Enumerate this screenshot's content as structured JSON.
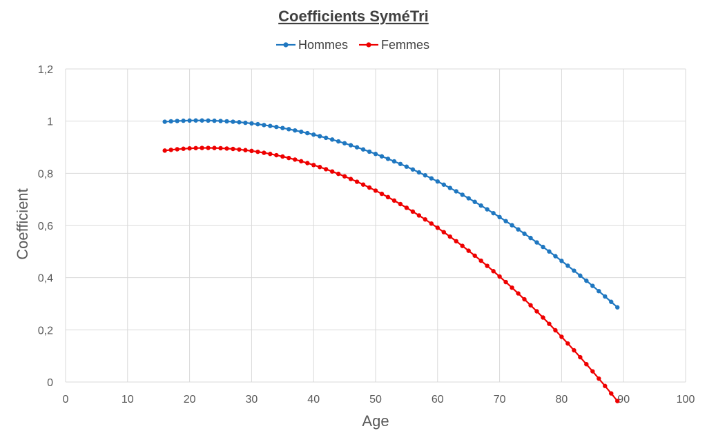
{
  "chart_data": {
    "type": "line",
    "title": "Coefficients SyméTri",
    "xlabel": "Age",
    "ylabel": "Coefficient",
    "xlim": [
      0,
      100
    ],
    "ylim": [
      0,
      1.2
    ],
    "x_ticks": [
      "0",
      "10",
      "20",
      "30",
      "40",
      "50",
      "60",
      "70",
      "80",
      "90",
      "100"
    ],
    "y_ticks": [
      "0",
      "0,2",
      "0,4",
      "0,6",
      "0,8",
      "1",
      "1,2"
    ],
    "grid": true,
    "legend_position": "top",
    "x": [
      16,
      17,
      18,
      19,
      20,
      21,
      22,
      23,
      24,
      25,
      26,
      27,
      28,
      29,
      30,
      31,
      32,
      33,
      34,
      35,
      36,
      37,
      38,
      39,
      40,
      41,
      42,
      43,
      44,
      45,
      46,
      47,
      48,
      49,
      50,
      51,
      52,
      53,
      54,
      55,
      56,
      57,
      58,
      59,
      60,
      61,
      62,
      63,
      64,
      65,
      66,
      67,
      68,
      69,
      70,
      71,
      72,
      73,
      74,
      75,
      76,
      77,
      78,
      79,
      80,
      81,
      82,
      83,
      84,
      85,
      86,
      87,
      88,
      89
    ],
    "series": [
      {
        "name": "Hommes",
        "color": "#1f77c0",
        "values": [
          0.9977,
          0.9993,
          1.0006,
          1.0015,
          1.0022,
          1.0025,
          1.0025,
          1.0022,
          1.0015,
          1.0006,
          0.9993,
          0.9977,
          0.9958,
          0.9936,
          0.9911,
          0.9882,
          0.985,
          0.9815,
          0.9777,
          0.9736,
          0.9692,
          0.9644,
          0.9594,
          0.954,
          0.9483,
          0.9423,
          0.936,
          0.9294,
          0.9224,
          0.9152,
          0.9076,
          0.8997,
          0.8915,
          0.883,
          0.8742,
          0.865,
          0.8556,
          0.8458,
          0.8358,
          0.8254,
          0.8147,
          0.8036,
          0.7923,
          0.7807,
          0.7687,
          0.7565,
          0.7439,
          0.731,
          0.7178,
          0.7043,
          0.6905,
          0.6764,
          0.6619,
          0.6472,
          0.6321,
          0.6167,
          0.601,
          0.585,
          0.5687,
          0.5521,
          0.5351,
          0.5178,
          0.5003,
          0.4824,
          0.4642,
          0.4457,
          0.4268,
          0.4077,
          0.3882,
          0.3685,
          0.3484,
          0.328,
          0.3073,
          0.2862
        ]
      },
      {
        "name": "Femmes",
        "color": "#ee0000",
        "values": [
          0.8871,
          0.8899,
          0.8922,
          0.8941,
          0.8956,
          0.8966,
          0.8972,
          0.8973,
          0.897,
          0.8962,
          0.895,
          0.8934,
          0.8913,
          0.8888,
          0.8858,
          0.8824,
          0.8786,
          0.8743,
          0.8695,
          0.8644,
          0.8587,
          0.8527,
          0.8462,
          0.8392,
          0.8318,
          0.824,
          0.8157,
          0.807,
          0.7979,
          0.7883,
          0.7782,
          0.7677,
          0.7568,
          0.7454,
          0.7336,
          0.7214,
          0.7087,
          0.6955,
          0.6819,
          0.6679,
          0.6534,
          0.6385,
          0.6231,
          0.6073,
          0.5911,
          0.5744,
          0.5573,
          0.5397,
          0.5217,
          0.5032,
          0.4843,
          0.465,
          0.4452,
          0.4249,
          0.4043,
          0.3831,
          0.3616,
          0.3396,
          0.3171,
          0.2942,
          0.2709,
          0.2471,
          0.2229,
          0.1982,
          0.1731,
          0.1476,
          0.1216,
          0.0951,
          0.0682,
          0.0409,
          0.0131,
          -0.0151,
          -0.0438,
          -0.0729
        ]
      }
    ]
  }
}
